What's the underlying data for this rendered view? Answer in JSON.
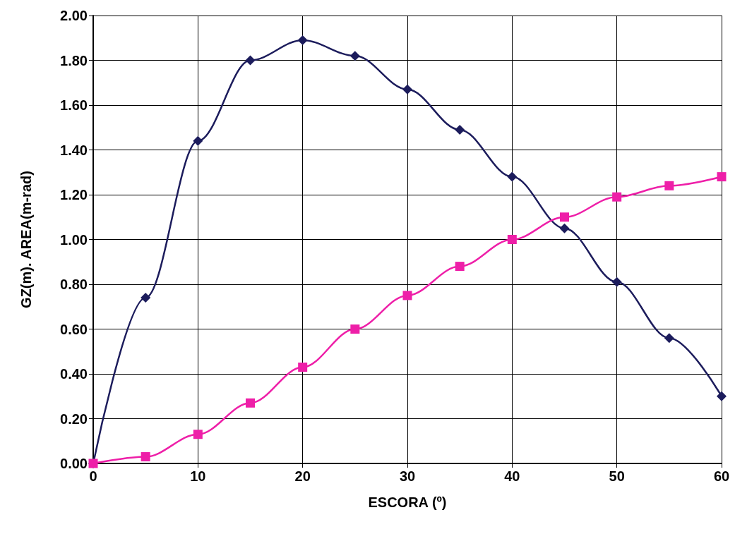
{
  "chart_data": {
    "type": "line",
    "xlabel": "ESCORA (º)",
    "ylabel": "GZ(m). AREA(m-rad)",
    "x": [
      0,
      5,
      10,
      15,
      20,
      25,
      30,
      35,
      40,
      45,
      50,
      55,
      60
    ],
    "series": [
      {
        "color": "#1c1c5c",
        "marker": "diamond",
        "values": [
          0,
          0.74,
          1.44,
          1.8,
          1.89,
          1.82,
          1.67,
          1.49,
          1.28,
          1.05,
          0.81,
          0.56,
          0.3
        ]
      },
      {
        "color": "#ee1fa8",
        "marker": "square",
        "values": [
          0,
          0.03,
          0.13,
          0.27,
          0.43,
          0.6,
          0.75,
          0.88,
          1.0,
          1.1,
          1.19,
          1.24,
          1.28
        ]
      }
    ],
    "xlim": [
      0,
      60
    ],
    "xticks": [
      0,
      10,
      20,
      30,
      40,
      50,
      60
    ],
    "ylim": [
      0,
      2
    ],
    "yticks": [
      {
        "value": 0,
        "label": "0.00"
      },
      {
        "value": 0.2,
        "label": "0.20"
      },
      {
        "value": 0.4,
        "label": "0.40"
      },
      {
        "value": 0.6,
        "label": "0.60"
      },
      {
        "value": 0.8,
        "label": "0.80"
      },
      {
        "value": 1,
        "label": "1.00"
      },
      {
        "value": 1.2,
        "label": "1.20"
      },
      {
        "value": 1.4,
        "label": "1.40"
      },
      {
        "value": 1.6,
        "label": "1.60"
      },
      {
        "value": 1.8,
        "label": "1.80"
      },
      {
        "value": 2,
        "label": "2.00"
      }
    ],
    "grid": true,
    "line_style": "solid"
  }
}
